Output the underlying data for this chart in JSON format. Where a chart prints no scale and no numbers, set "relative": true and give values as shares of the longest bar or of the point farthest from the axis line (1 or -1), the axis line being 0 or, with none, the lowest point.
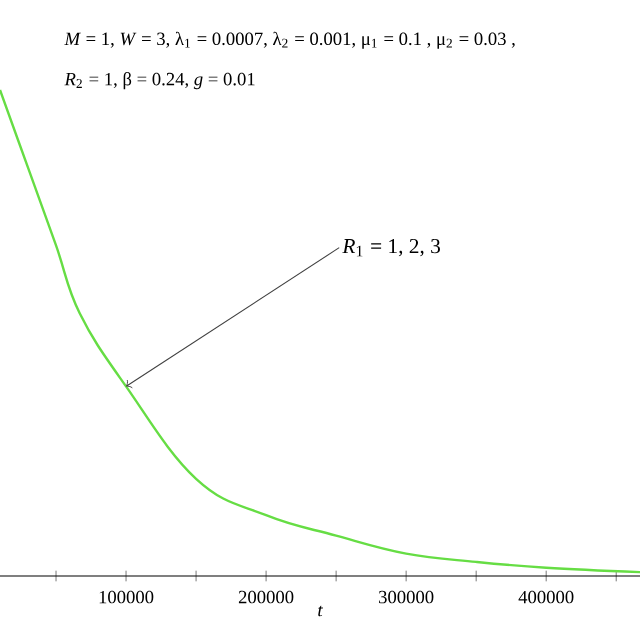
{
  "chart_data": {
    "type": "line",
    "relative": true,
    "xlabel": "t",
    "x": [
      10000,
      30000,
      50000,
      67000,
      100000,
      150000,
      200000,
      250000,
      300000,
      350000,
      400000,
      467000
    ],
    "series": [
      {
        "color": "#66dd44",
        "values": [
          1.0,
          0.84,
          0.68,
          0.54,
          0.39,
          0.2,
          0.125,
          0.083,
          0.046,
          0.029,
          0.017,
          0.008
        ]
      }
    ],
    "xlim": [
      10000,
      467000
    ],
    "xticks": [
      {
        "value": 50000,
        "label": null
      },
      100000,
      {
        "value": 150000,
        "label": null
      },
      200000,
      {
        "value": 250000,
        "label": null
      },
      300000,
      {
        "value": 350000,
        "label": null
      },
      400000,
      {
        "value": 450000,
        "label": null
      }
    ],
    "annotations": [
      "*M* = 1, *W* = 3, λ$_{1}$ = 0.0007, λ$_{2}$ = 0.001, μ$_{1}$ = 0.1 ,  μ$_{2}$ = 0.03 ,",
      "*R*$_{2}$ = 1, β = 0.24, *g* = 0.01",
      "*R*$_{1}$ = 1, 2, 3"
    ]
  }
}
